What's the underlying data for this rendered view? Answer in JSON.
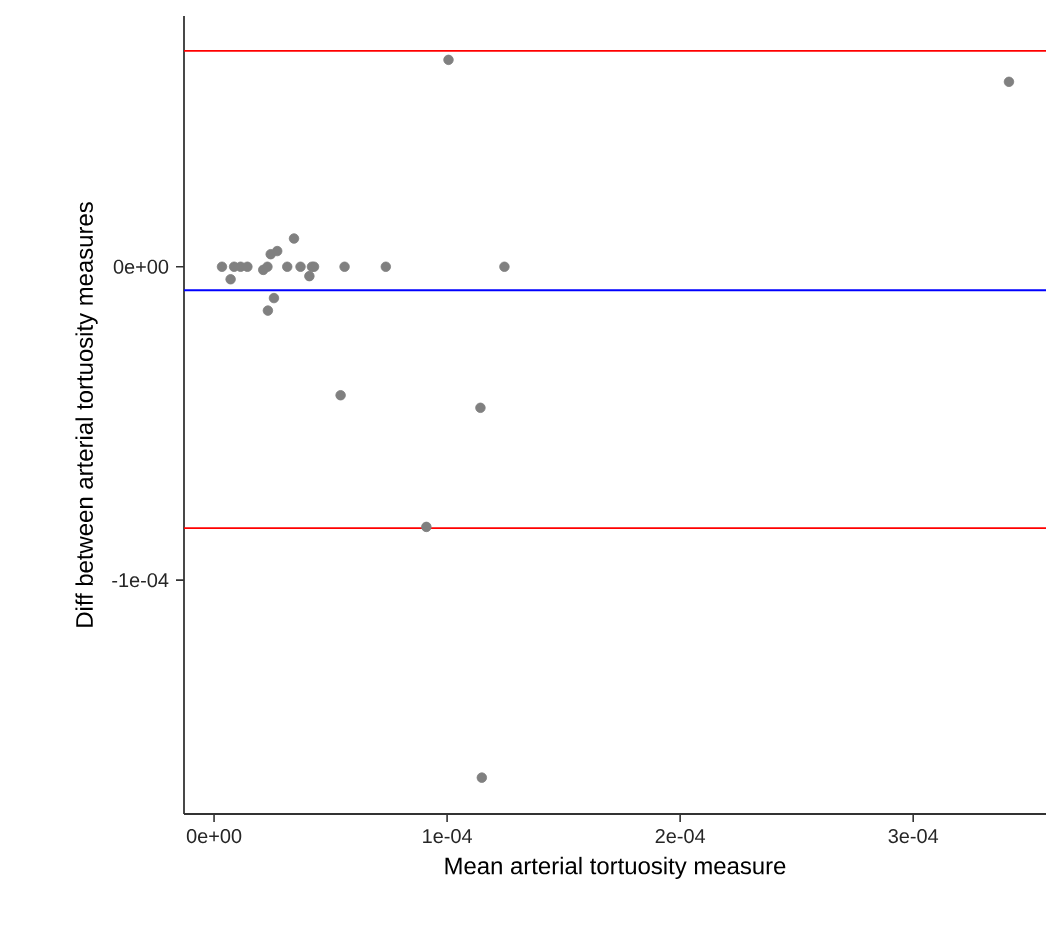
{
  "chart_data": {
    "type": "scatter",
    "xlabel": "Mean arterial tortuosity measure",
    "ylabel": "Diff between arterial tortuosity measures",
    "x": [
      0.0001006,
      0.0003411,
      3.4e-06,
      7.1e-06,
      8.6e-06,
      1.14e-05,
      1.43e-05,
      2.11e-05,
      2.29e-05,
      2.43e-05,
      2.71e-05,
      3.43e-05,
      3.14e-05,
      3.71e-05,
      4.09e-05,
      4.2e-05,
      4.29e-05,
      2.57e-05,
      2.31e-05,
      5.6e-05,
      7.37e-05,
      0.0001246,
      5.43e-05,
      0.0001143,
      9.11e-05,
      0.0001149
    ],
    "values": [
      6.6e-05,
      5.9e-05,
      0,
      -4e-06,
      0,
      0,
      0,
      -1e-06,
      0,
      4e-06,
      5e-06,
      9e-06,
      0,
      0,
      -3e-06,
      0,
      0,
      -1e-05,
      -1.4e-05,
      0,
      0,
      0,
      -4.1e-05,
      -4.5e-05,
      -8.3e-05,
      -0.000163
    ],
    "color": "#808080",
    "xlim": [
      -1.29e-05,
      0.000357
    ],
    "ylim": [
      -0.0001746,
      8e-05
    ],
    "xticks": [
      {
        "value": 0,
        "label": "0e+00"
      },
      {
        "value": 0.0001,
        "label": "1e-04"
      },
      {
        "value": 0.0002,
        "label": "2e-04"
      },
      {
        "value": 0.0003,
        "label": "3e-04"
      }
    ],
    "yticks": [
      {
        "value": -0.0001,
        "label": "-1e-04"
      },
      {
        "value": 0,
        "label": "0e+00"
      }
    ],
    "ref_lines": [
      {
        "axis": "y",
        "value": 6.89e-05,
        "color": "#ff0000"
      },
      {
        "axis": "y",
        "value": -7.5e-06,
        "color": "#0000ff"
      },
      {
        "axis": "y",
        "value": -8.34e-05,
        "color": "#ff0000"
      }
    ]
  }
}
